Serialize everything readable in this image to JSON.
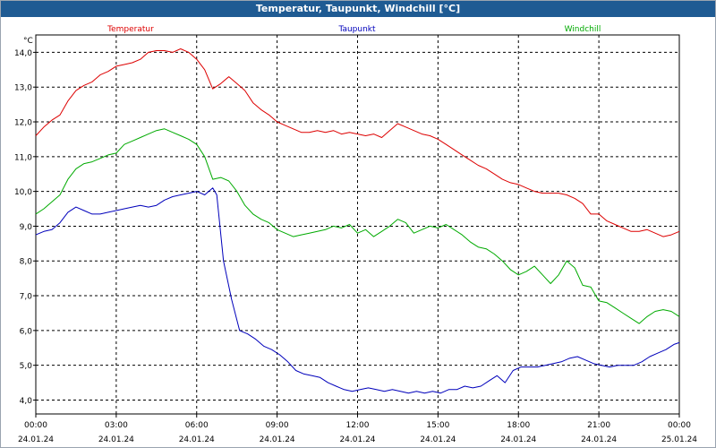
{
  "window": {
    "title": "Temperatur, Taupunkt, Windchill [°C]"
  },
  "colors": {
    "title_bar": "#1f5b93",
    "temperature": "#dd0000",
    "dewpoint": "#0000bb",
    "windchill": "#00aa00",
    "grid": "#000000"
  },
  "chart_data": {
    "type": "line",
    "title": "Temperatur, Taupunkt, Windchill [°C]",
    "ylabel": "°C",
    "ylim": [
      3.6,
      14.5
    ],
    "xlim": [
      0,
      24
    ],
    "y_ticks": [
      4,
      5,
      6,
      7,
      8,
      9,
      10,
      11,
      12,
      13,
      14
    ],
    "y_tick_labels": [
      "4,0",
      "5,0",
      "6,0",
      "7,0",
      "8,0",
      "9,0",
      "10,0",
      "11,0",
      "12,0",
      "13,0",
      "14,0"
    ],
    "x_ticks": [
      0,
      3,
      6,
      9,
      12,
      15,
      18,
      21,
      24
    ],
    "x_tick_labels": [
      {
        "time": "00:00",
        "date": "24.01.24"
      },
      {
        "time": "03:00",
        "date": "24.01.24"
      },
      {
        "time": "06:00",
        "date": "24.01.24"
      },
      {
        "time": "09:00",
        "date": "24.01.24"
      },
      {
        "time": "12:00",
        "date": "24.01.24"
      },
      {
        "time": "15:00",
        "date": "24.01.24"
      },
      {
        "time": "18:00",
        "date": "24.01.24"
      },
      {
        "time": "21:00",
        "date": "24.01.24"
      },
      {
        "time": "00:00",
        "date": "25.01.24"
      }
    ],
    "grid": true,
    "x_unit": "hours since 24.01.24 00:00",
    "series": [
      {
        "name": "Temperatur",
        "color": "#dd0000",
        "legend_position": "left",
        "points": [
          [
            0.0,
            11.6
          ],
          [
            0.3,
            11.85
          ],
          [
            0.6,
            12.05
          ],
          [
            0.9,
            12.2
          ],
          [
            1.2,
            12.6
          ],
          [
            1.5,
            12.9
          ],
          [
            1.8,
            13.05
          ],
          [
            2.1,
            13.15
          ],
          [
            2.4,
            13.35
          ],
          [
            2.7,
            13.45
          ],
          [
            3.0,
            13.6
          ],
          [
            3.3,
            13.65
          ],
          [
            3.6,
            13.7
          ],
          [
            3.9,
            13.8
          ],
          [
            4.2,
            14.0
          ],
          [
            4.5,
            14.05
          ],
          [
            4.8,
            14.05
          ],
          [
            5.1,
            14.0
          ],
          [
            5.4,
            14.1
          ],
          [
            5.7,
            14.0
          ],
          [
            6.0,
            13.8
          ],
          [
            6.3,
            13.5
          ],
          [
            6.6,
            12.95
          ],
          [
            6.9,
            13.1
          ],
          [
            7.2,
            13.3
          ],
          [
            7.5,
            13.1
          ],
          [
            7.8,
            12.9
          ],
          [
            8.1,
            12.55
          ],
          [
            8.4,
            12.35
          ],
          [
            8.7,
            12.2
          ],
          [
            9.0,
            12.0
          ],
          [
            9.3,
            11.9
          ],
          [
            9.6,
            11.8
          ],
          [
            9.9,
            11.7
          ],
          [
            10.2,
            11.7
          ],
          [
            10.5,
            11.75
          ],
          [
            10.8,
            11.7
          ],
          [
            11.1,
            11.75
          ],
          [
            11.4,
            11.65
          ],
          [
            11.7,
            11.7
          ],
          [
            12.0,
            11.65
          ],
          [
            12.3,
            11.6
          ],
          [
            12.6,
            11.65
          ],
          [
            12.9,
            11.55
          ],
          [
            13.2,
            11.75
          ],
          [
            13.5,
            11.95
          ],
          [
            13.8,
            11.85
          ],
          [
            14.1,
            11.75
          ],
          [
            14.4,
            11.65
          ],
          [
            14.7,
            11.6
          ],
          [
            15.0,
            11.5
          ],
          [
            15.3,
            11.35
          ],
          [
            15.6,
            11.2
          ],
          [
            15.9,
            11.05
          ],
          [
            16.2,
            10.9
          ],
          [
            16.5,
            10.75
          ],
          [
            16.8,
            10.65
          ],
          [
            17.1,
            10.5
          ],
          [
            17.4,
            10.35
          ],
          [
            17.7,
            10.25
          ],
          [
            18.0,
            10.2
          ],
          [
            18.3,
            10.1
          ],
          [
            18.6,
            10.0
          ],
          [
            18.9,
            9.95
          ],
          [
            19.2,
            9.95
          ],
          [
            19.5,
            9.95
          ],
          [
            19.8,
            9.9
          ],
          [
            20.1,
            9.8
          ],
          [
            20.4,
            9.65
          ],
          [
            20.7,
            9.35
          ],
          [
            21.0,
            9.35
          ],
          [
            21.3,
            9.15
          ],
          [
            21.6,
            9.05
          ],
          [
            21.9,
            8.95
          ],
          [
            22.2,
            8.85
          ],
          [
            22.5,
            8.85
          ],
          [
            22.8,
            8.9
          ],
          [
            23.1,
            8.8
          ],
          [
            23.4,
            8.7
          ],
          [
            23.7,
            8.75
          ],
          [
            24.0,
            8.85
          ]
        ]
      },
      {
        "name": "Taupunkt",
        "color": "#0000bb",
        "legend_position": "center",
        "points": [
          [
            0.0,
            8.75
          ],
          [
            0.3,
            8.85
          ],
          [
            0.6,
            8.9
          ],
          [
            0.9,
            9.1
          ],
          [
            1.2,
            9.4
          ],
          [
            1.5,
            9.55
          ],
          [
            1.8,
            9.45
          ],
          [
            2.1,
            9.35
          ],
          [
            2.4,
            9.35
          ],
          [
            2.7,
            9.4
          ],
          [
            3.0,
            9.45
          ],
          [
            3.3,
            9.5
          ],
          [
            3.6,
            9.55
          ],
          [
            3.9,
            9.6
          ],
          [
            4.2,
            9.55
          ],
          [
            4.5,
            9.6
          ],
          [
            4.8,
            9.75
          ],
          [
            5.1,
            9.85
          ],
          [
            5.4,
            9.9
          ],
          [
            5.7,
            9.95
          ],
          [
            6.0,
            10.0
          ],
          [
            6.3,
            9.9
          ],
          [
            6.6,
            10.1
          ],
          [
            6.75,
            9.9
          ],
          [
            7.0,
            8.0
          ],
          [
            7.3,
            6.9
          ],
          [
            7.6,
            6.0
          ],
          [
            7.9,
            5.9
          ],
          [
            8.2,
            5.75
          ],
          [
            8.5,
            5.55
          ],
          [
            8.8,
            5.45
          ],
          [
            9.1,
            5.3
          ],
          [
            9.4,
            5.1
          ],
          [
            9.7,
            4.85
          ],
          [
            10.0,
            4.75
          ],
          [
            10.3,
            4.7
          ],
          [
            10.6,
            4.65
          ],
          [
            10.9,
            4.5
          ],
          [
            11.2,
            4.4
          ],
          [
            11.5,
            4.3
          ],
          [
            11.8,
            4.25
          ],
          [
            12.1,
            4.3
          ],
          [
            12.4,
            4.35
          ],
          [
            12.7,
            4.3
          ],
          [
            13.0,
            4.25
          ],
          [
            13.3,
            4.3
          ],
          [
            13.6,
            4.25
          ],
          [
            13.9,
            4.2
          ],
          [
            14.2,
            4.25
          ],
          [
            14.5,
            4.2
          ],
          [
            14.8,
            4.25
          ],
          [
            15.1,
            4.2
          ],
          [
            15.4,
            4.3
          ],
          [
            15.7,
            4.3
          ],
          [
            16.0,
            4.4
          ],
          [
            16.3,
            4.35
          ],
          [
            16.6,
            4.4
          ],
          [
            16.9,
            4.55
          ],
          [
            17.2,
            4.7
          ],
          [
            17.5,
            4.5
          ],
          [
            17.8,
            4.85
          ],
          [
            18.1,
            4.95
          ],
          [
            18.4,
            4.95
          ],
          [
            18.7,
            4.95
          ],
          [
            19.0,
            5.0
          ],
          [
            19.3,
            5.05
          ],
          [
            19.6,
            5.1
          ],
          [
            19.9,
            5.2
          ],
          [
            20.2,
            5.25
          ],
          [
            20.5,
            5.15
          ],
          [
            20.8,
            5.05
          ],
          [
            21.1,
            5.0
          ],
          [
            21.4,
            4.95
          ],
          [
            21.7,
            5.0
          ],
          [
            22.0,
            5.0
          ],
          [
            22.3,
            5.0
          ],
          [
            22.6,
            5.1
          ],
          [
            22.9,
            5.25
          ],
          [
            23.2,
            5.35
          ],
          [
            23.5,
            5.45
          ],
          [
            23.8,
            5.6
          ],
          [
            24.0,
            5.65
          ]
        ]
      },
      {
        "name": "Windchill",
        "color": "#00aa00",
        "legend_position": "right",
        "points": [
          [
            0.0,
            9.35
          ],
          [
            0.3,
            9.5
          ],
          [
            0.6,
            9.7
          ],
          [
            0.9,
            9.9
          ],
          [
            1.2,
            10.35
          ],
          [
            1.5,
            10.65
          ],
          [
            1.8,
            10.8
          ],
          [
            2.1,
            10.85
          ],
          [
            2.4,
            10.95
          ],
          [
            2.7,
            11.05
          ],
          [
            3.0,
            11.1
          ],
          [
            3.3,
            11.35
          ],
          [
            3.6,
            11.45
          ],
          [
            3.9,
            11.55
          ],
          [
            4.2,
            11.65
          ],
          [
            4.5,
            11.75
          ],
          [
            4.8,
            11.8
          ],
          [
            5.1,
            11.7
          ],
          [
            5.4,
            11.6
          ],
          [
            5.7,
            11.5
          ],
          [
            6.0,
            11.35
          ],
          [
            6.3,
            11.0
          ],
          [
            6.6,
            10.35
          ],
          [
            6.9,
            10.4
          ],
          [
            7.2,
            10.3
          ],
          [
            7.5,
            10.0
          ],
          [
            7.8,
            9.6
          ],
          [
            8.1,
            9.35
          ],
          [
            8.4,
            9.2
          ],
          [
            8.7,
            9.1
          ],
          [
            9.0,
            8.9
          ],
          [
            9.3,
            8.8
          ],
          [
            9.6,
            8.7
          ],
          [
            9.9,
            8.75
          ],
          [
            10.2,
            8.8
          ],
          [
            10.5,
            8.85
          ],
          [
            10.8,
            8.9
          ],
          [
            11.1,
            9.0
          ],
          [
            11.4,
            8.95
          ],
          [
            11.7,
            9.05
          ],
          [
            12.0,
            8.8
          ],
          [
            12.3,
            8.9
          ],
          [
            12.6,
            8.7
          ],
          [
            12.9,
            8.85
          ],
          [
            13.2,
            9.0
          ],
          [
            13.5,
            9.2
          ],
          [
            13.8,
            9.1
          ],
          [
            14.1,
            8.8
          ],
          [
            14.4,
            8.9
          ],
          [
            14.7,
            9.0
          ],
          [
            15.0,
            8.95
          ],
          [
            15.3,
            9.05
          ],
          [
            15.6,
            8.9
          ],
          [
            15.9,
            8.75
          ],
          [
            16.2,
            8.55
          ],
          [
            16.5,
            8.4
          ],
          [
            16.8,
            8.35
          ],
          [
            17.1,
            8.2
          ],
          [
            17.4,
            8.0
          ],
          [
            17.7,
            7.75
          ],
          [
            18.0,
            7.6
          ],
          [
            18.3,
            7.7
          ],
          [
            18.6,
            7.85
          ],
          [
            18.9,
            7.6
          ],
          [
            19.2,
            7.35
          ],
          [
            19.5,
            7.6
          ],
          [
            19.8,
            8.0
          ],
          [
            20.1,
            7.8
          ],
          [
            20.4,
            7.3
          ],
          [
            20.7,
            7.25
          ],
          [
            21.0,
            6.85
          ],
          [
            21.3,
            6.8
          ],
          [
            21.6,
            6.65
          ],
          [
            21.9,
            6.5
          ],
          [
            22.2,
            6.35
          ],
          [
            22.5,
            6.2
          ],
          [
            22.8,
            6.4
          ],
          [
            23.1,
            6.55
          ],
          [
            23.4,
            6.6
          ],
          [
            23.7,
            6.55
          ],
          [
            24.0,
            6.4
          ]
        ]
      }
    ]
  }
}
